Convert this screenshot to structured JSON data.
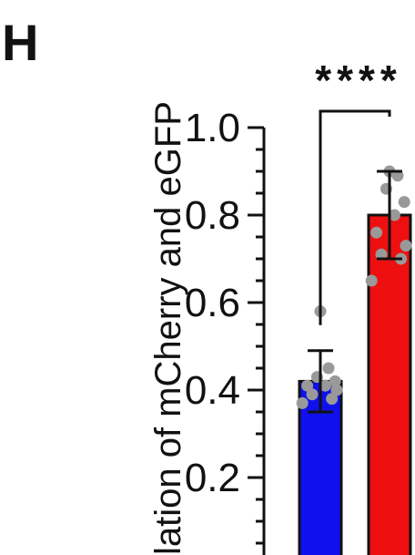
{
  "panel_label": "H",
  "chart_data": {
    "type": "bar",
    "categories": [
      "",
      ""
    ],
    "values": [
      0.42,
      0.8
    ],
    "errors": [
      0.07,
      0.1
    ],
    "bar_colors": [
      "#1010ee",
      "#ee1010"
    ],
    "ylabel": "lation of mCherry and eGFP",
    "ylim": [
      0,
      1.0
    ],
    "yticks": [
      "0.2",
      "0.4",
      "0.6",
      "0.8",
      "1.0"
    ],
    "ytick_values": [
      0.2,
      0.4,
      0.6,
      0.8,
      1.0
    ],
    "points": [
      [
        0.37,
        0.38,
        0.39,
        0.4,
        0.41,
        0.41,
        0.42,
        0.43,
        0.45,
        0.58
      ],
      [
        0.65,
        0.7,
        0.71,
        0.73,
        0.76,
        0.8,
        0.83,
        0.86,
        0.89,
        0.9
      ]
    ],
    "significance": "****",
    "grid": false
  }
}
